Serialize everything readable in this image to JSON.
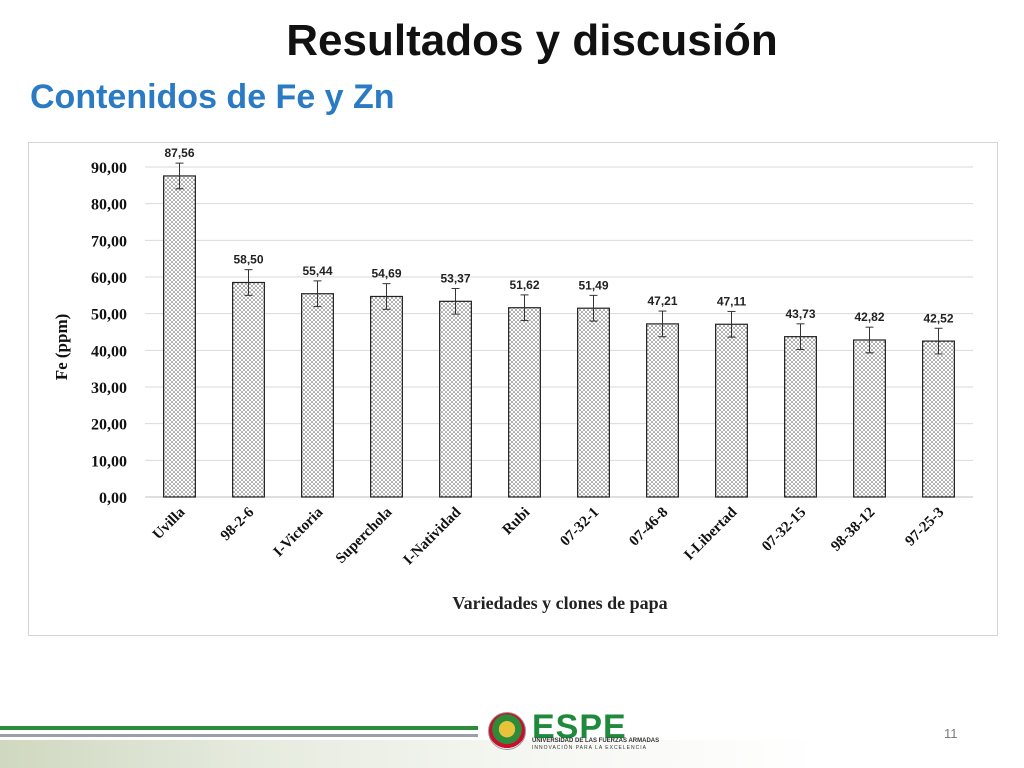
{
  "slide": {
    "title": "Resultados y discusión",
    "subtitle": "Contenidos de Fe y Zn",
    "page_number": "11"
  },
  "logo": {
    "text": "ESPE",
    "line1": "UNIVERSIDAD DE LAS FUERZAS ARMADAS",
    "line2": "INNOVACIÓN PARA LA EXCELENCIA"
  },
  "chart_data": {
    "type": "bar",
    "title": "",
    "xlabel": "Variedades y clones de papa",
    "ylabel": "Fe (ppm)",
    "ylim": [
      0,
      90
    ],
    "yticks": [
      "0,00",
      "10,00",
      "20,00",
      "30,00",
      "40,00",
      "50,00",
      "60,00",
      "70,00",
      "80,00",
      "90,00"
    ],
    "grid": true,
    "bar_fill": "dotted",
    "categories": [
      "Uvilla",
      "98-2-6",
      "I-Victoria",
      "Superchola",
      "I-Natividad",
      "Rubi",
      "07-32-1",
      "07-46-8",
      "I-Libertad",
      "07-32-15",
      "98-38-12",
      "97-25-3"
    ],
    "values": [
      87.56,
      58.5,
      55.44,
      54.69,
      53.37,
      51.62,
      51.49,
      47.21,
      47.11,
      43.73,
      42.82,
      42.52
    ],
    "value_labels": [
      "87,56",
      "58,50",
      "55,44",
      "54,69",
      "53,37",
      "51,62",
      "51,49",
      "47,21",
      "47,11",
      "43,73",
      "42,82",
      "42,52"
    ],
    "error": [
      3.5,
      3.5,
      3.5,
      3.5,
      3.5,
      3.5,
      3.5,
      3.5,
      3.5,
      3.5,
      3.5,
      3.5
    ]
  },
  "colors": {
    "bar_edge": "#222222",
    "bar_dots": "#555555",
    "grid": "#d9d9d9",
    "subtitle": "#2a7bc4",
    "logo_green": "#1f8a3c"
  }
}
